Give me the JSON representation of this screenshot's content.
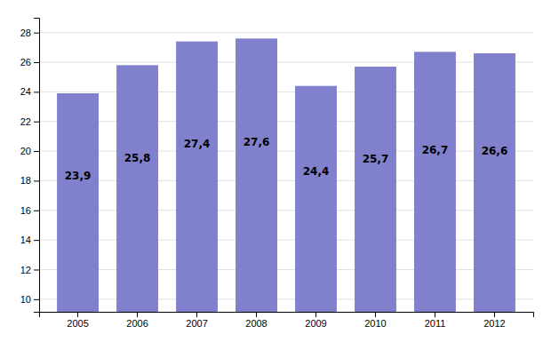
{
  "chart_data": {
    "type": "bar",
    "categories": [
      "2005",
      "2006",
      "2007",
      "2008",
      "2009",
      "2010",
      "2011",
      "2012"
    ],
    "values": [
      23.9,
      25.8,
      27.4,
      27.6,
      24.4,
      25.7,
      26.7,
      26.6
    ],
    "value_labels": [
      "23,9",
      "25,8",
      "27,4",
      "27,6",
      "24,4",
      "25,7",
      "26,7",
      "26,6"
    ],
    "color": "#8080cc",
    "ylim": [
      9.15,
      29
    ],
    "yticks": [
      10,
      12,
      14,
      16,
      18,
      20,
      22,
      24,
      26,
      28
    ],
    "grid": true,
    "data_labels": true
  }
}
